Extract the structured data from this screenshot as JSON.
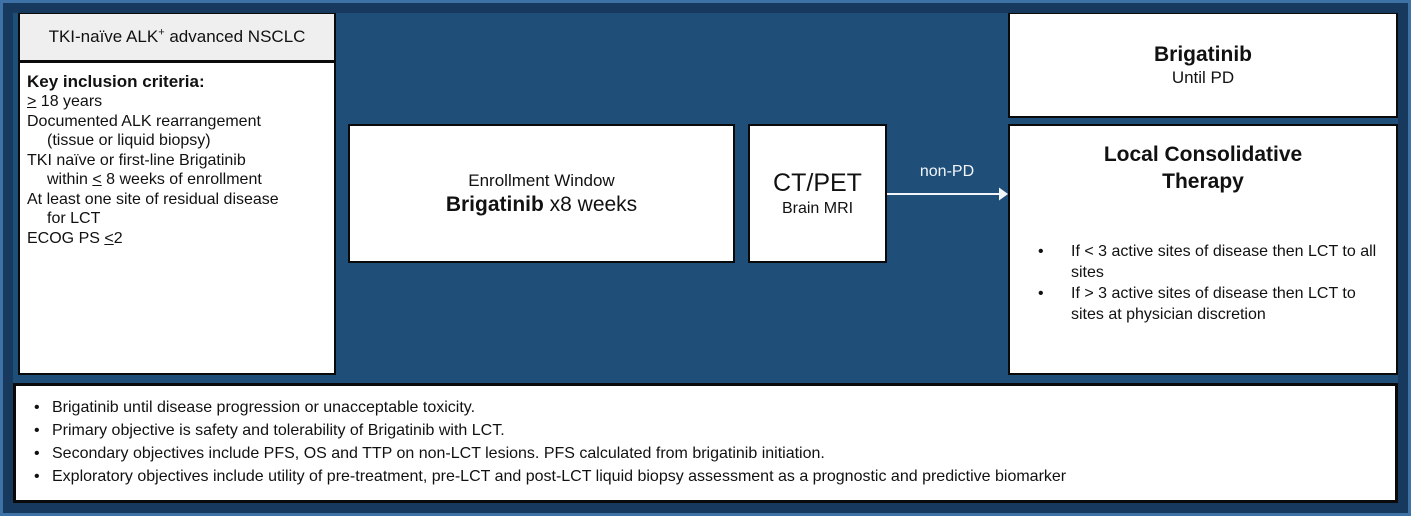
{
  "colors": {
    "background": "#1F4E79",
    "frame_dark": "#18395E",
    "frame_light": "#3E72A6",
    "box_fill": "#FFFFFF",
    "population_fill": "#EFEFEF",
    "box_border": "#0A0A0A",
    "arrow": "#F2F6FA"
  },
  "population_box": {
    "pre": "TKI-naïve ALK",
    "sup": "+",
    "post": " advanced NSCLC"
  },
  "inclusion_box": {
    "title": "Key inclusion criteria:",
    "lines": [
      {
        "indent": false,
        "segments": [
          {
            "t": ">",
            "u": true
          },
          {
            "t": " 18 years"
          }
        ]
      },
      {
        "indent": false,
        "segments": [
          {
            "t": "Documented ALK rearrangement"
          }
        ]
      },
      {
        "indent": true,
        "segments": [
          {
            "t": "(tissue or liquid biopsy)"
          }
        ]
      },
      {
        "indent": false,
        "segments": [
          {
            "t": "TKI naïve or first-line Brigatinib"
          }
        ]
      },
      {
        "indent": true,
        "segments": [
          {
            "t": "within "
          },
          {
            "t": "<",
            "u": true
          },
          {
            "t": " 8 weeks of enrollment"
          }
        ]
      },
      {
        "indent": false,
        "segments": [
          {
            "t": "At least one site of residual disease"
          }
        ]
      },
      {
        "indent": true,
        "segments": [
          {
            "t": "for LCT"
          }
        ]
      },
      {
        "indent": false,
        "segments": [
          {
            "t": "ECOG PS "
          },
          {
            "t": "<",
            "u": true
          },
          {
            "t": "2"
          }
        ]
      }
    ]
  },
  "enrollment_box": {
    "line1": "Enrollment Window",
    "line2_bold": "Brigatinib",
    "line2_rest": " x8 weeks"
  },
  "imaging_box": {
    "line1": "CT/PET",
    "line2": "Brain MRI"
  },
  "arrow": {
    "label": "non-PD"
  },
  "brigatinib_box": {
    "title": "Brigatinib",
    "subtitle": "Until PD"
  },
  "lct_box": {
    "title_line1": "Local Consolidative",
    "title_line2": "Therapy",
    "bullet_char": "•",
    "bullets": [
      "If < 3 active sites of disease then LCT to all sites",
      "If > 3 active sites of disease then LCT to sites at physician discretion"
    ]
  },
  "footnotes": {
    "bullet_char": "•",
    "bullets": [
      "Brigatinib until disease progression or unacceptable toxicity.",
      "Primary objective is safety and tolerability of Brigatinib with LCT.",
      "Secondary objectives include PFS, OS and TTP on non-LCT lesions. PFS calculated from brigatinib initiation.",
      "Exploratory objectives include utility of pre-treatment, pre-LCT and post-LCT liquid biopsy assessment as a prognostic and predictive biomarker"
    ]
  }
}
